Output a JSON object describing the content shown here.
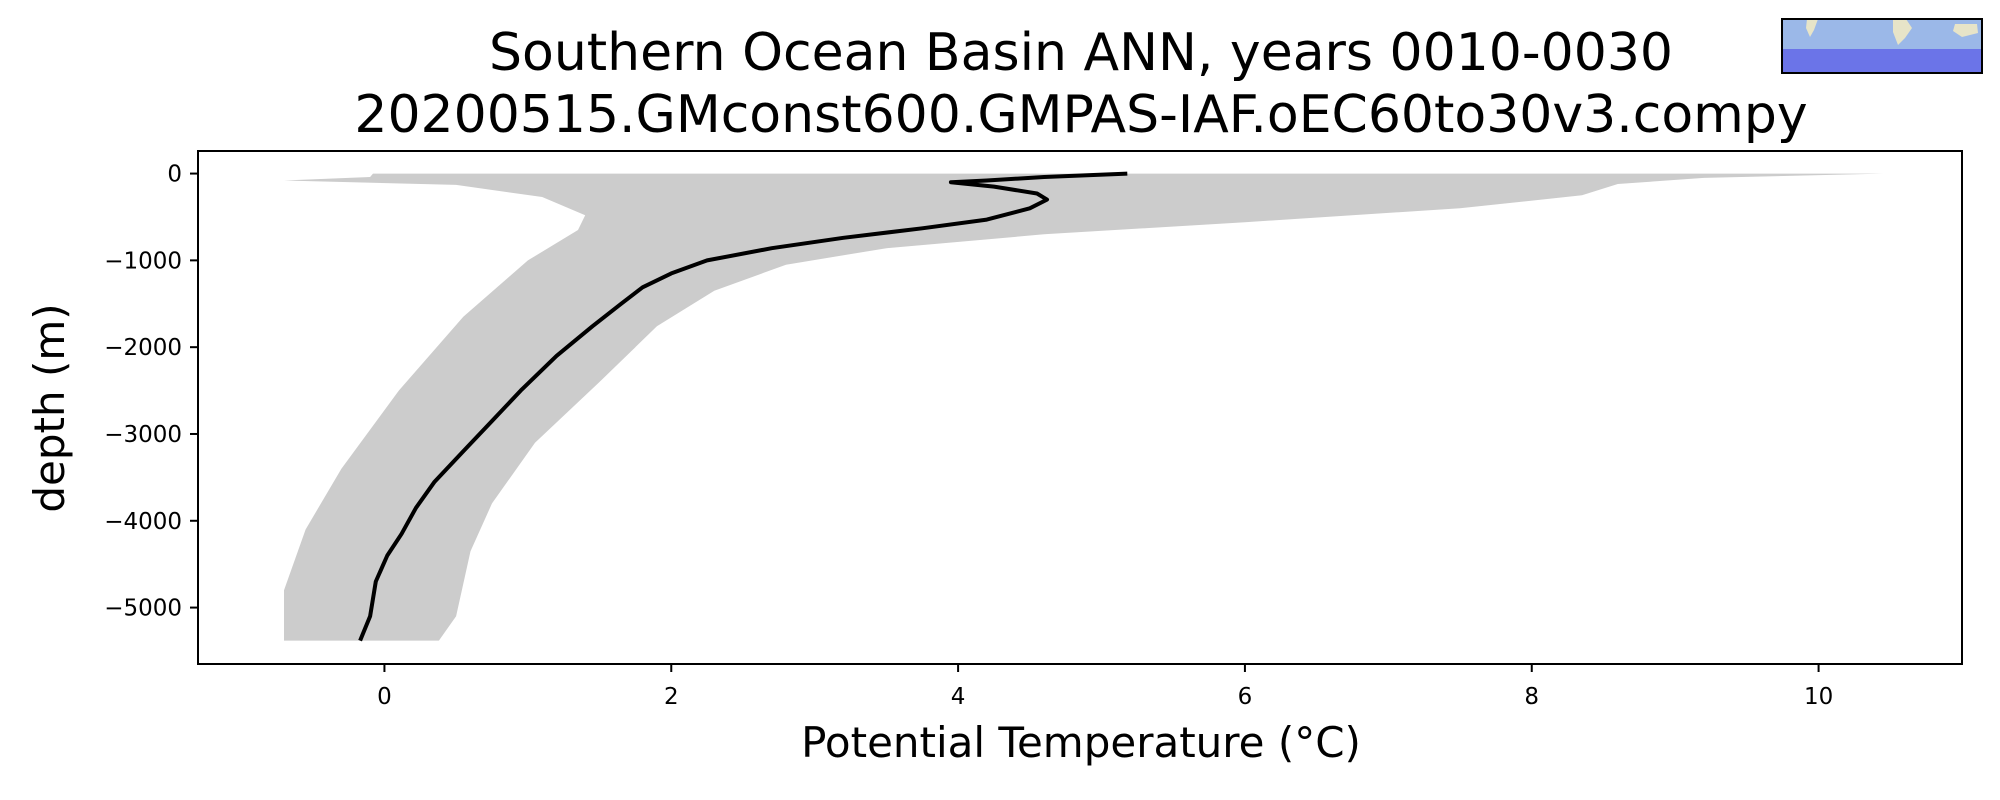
{
  "chart_data": {
    "type": "line",
    "title": "Southern Ocean Basin ANN, years 0010-0030",
    "subtitle": "20200515.GMconst600.GMPAS-IAF.oEC60to30v3.compy",
    "xlabel": "Potential Temperature (°C)",
    "ylabel": "depth (m)",
    "xlim": [
      -1.3,
      11.0
    ],
    "ylim": [
      -5650,
      260
    ],
    "xticks": [
      0,
      2,
      4,
      6,
      8,
      10
    ],
    "xtick_labels": [
      "0",
      "2",
      "4",
      "6",
      "8",
      "10"
    ],
    "yticks": [
      0,
      -1000,
      -2000,
      -3000,
      -4000,
      -5000
    ],
    "ytick_labels": [
      "0",
      "−1000",
      "−2000",
      "−3000",
      "−4000",
      "−5000"
    ],
    "grid": false,
    "inset": "basin-map",
    "series": [
      {
        "kind": "mean-line",
        "color": "#000000",
        "points": [
          [
            5.18,
            0
          ],
          [
            4.6,
            -40
          ],
          [
            4.2,
            -80
          ],
          [
            3.95,
            -100
          ],
          [
            4.25,
            -150
          ],
          [
            4.55,
            -230
          ],
          [
            4.62,
            -300
          ],
          [
            4.5,
            -400
          ],
          [
            4.2,
            -530
          ],
          [
            3.75,
            -630
          ],
          [
            3.2,
            -740
          ],
          [
            2.7,
            -860
          ],
          [
            2.25,
            -1000
          ],
          [
            2.0,
            -1150
          ],
          [
            1.8,
            -1310
          ],
          [
            1.65,
            -1500
          ],
          [
            1.45,
            -1760
          ],
          [
            1.2,
            -2100
          ],
          [
            0.95,
            -2500
          ],
          [
            0.75,
            -2850
          ],
          [
            0.55,
            -3200
          ],
          [
            0.35,
            -3550
          ],
          [
            0.22,
            -3850
          ],
          [
            0.12,
            -4150
          ],
          [
            0.02,
            -4400
          ],
          [
            -0.06,
            -4700
          ],
          [
            -0.1,
            -5100
          ],
          [
            -0.17,
            -5380
          ]
        ]
      },
      {
        "kind": "spread-band",
        "color": "#cccccc",
        "upper": [
          [
            10.45,
            0
          ],
          [
            9.2,
            -50
          ],
          [
            8.6,
            -120
          ],
          [
            8.35,
            -250
          ],
          [
            7.5,
            -400
          ],
          [
            6.0,
            -560
          ],
          [
            4.6,
            -700
          ],
          [
            3.5,
            -860
          ],
          [
            2.8,
            -1050
          ],
          [
            2.3,
            -1350
          ],
          [
            1.9,
            -1760
          ],
          [
            1.5,
            -2400
          ],
          [
            1.05,
            -3100
          ],
          [
            0.75,
            -3800
          ],
          [
            0.6,
            -4350
          ],
          [
            0.5,
            -5100
          ],
          [
            0.38,
            -5380
          ]
        ],
        "lower": [
          [
            -0.08,
            0
          ],
          [
            -0.1,
            -40
          ],
          [
            -0.7,
            -80
          ],
          [
            0.5,
            -130
          ],
          [
            1.1,
            -270
          ],
          [
            1.4,
            -480
          ],
          [
            1.35,
            -650
          ],
          [
            1.0,
            -1000
          ],
          [
            0.55,
            -1650
          ],
          [
            0.1,
            -2500
          ],
          [
            -0.3,
            -3400
          ],
          [
            -0.55,
            -4100
          ],
          [
            -0.7,
            -4800
          ],
          [
            -0.7,
            -5380
          ]
        ]
      }
    ]
  },
  "inset_map": {
    "ocean_color": "#6b74e8",
    "land_color": "#e7e4c8",
    "shallow_color": "#9bb8e8"
  }
}
